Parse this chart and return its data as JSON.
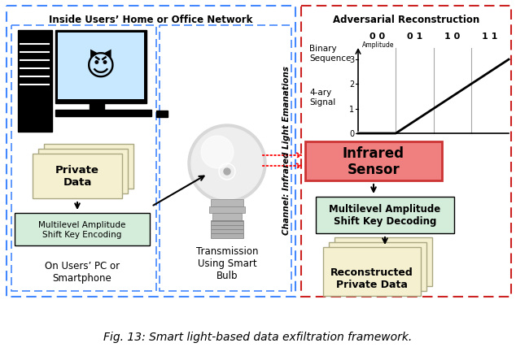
{
  "title": "Fig. 13: Smart light-based data exfiltration framework.",
  "left_box_title": "Inside Users’ Home or Office Network",
  "right_box_title": "Adversarial Reconstruction",
  "channel_label": "Channel: Infrared Light Emanations",
  "binary_sequence_label": "Binary\nSequence",
  "signal_label": "4-ary\nSignal",
  "amplitude_label": "Amplitude",
  "binary_values": [
    "0 0",
    "0 1",
    "1 0",
    "1 1"
  ],
  "private_data_label": "Private\nData",
  "encoding_label": "Multilevel Amplitude\nShift Key Encoding",
  "pc_label": "On Users’ PC or\nSmartphone",
  "bulb_label": "Transmission\nUsing Smart\nBulb",
  "sensor_label": "Infrared\nSensor",
  "decoding_label": "Multilevel Amplitude\nShift Key Decoding",
  "reconstructed_label": "Reconstructed\nPrivate Data",
  "bg_color": "#ffffff",
  "sensor_bg": "#f08080",
  "sensor_edge": "#cc3333",
  "encoding_bg": "#d4edda",
  "decoding_bg": "#d4edda",
  "private_data_bg": "#f5f0d0",
  "reconstructed_bg": "#f5f0d0",
  "left_dash_color": "#4488ff",
  "right_dash_color": "#cc2222"
}
